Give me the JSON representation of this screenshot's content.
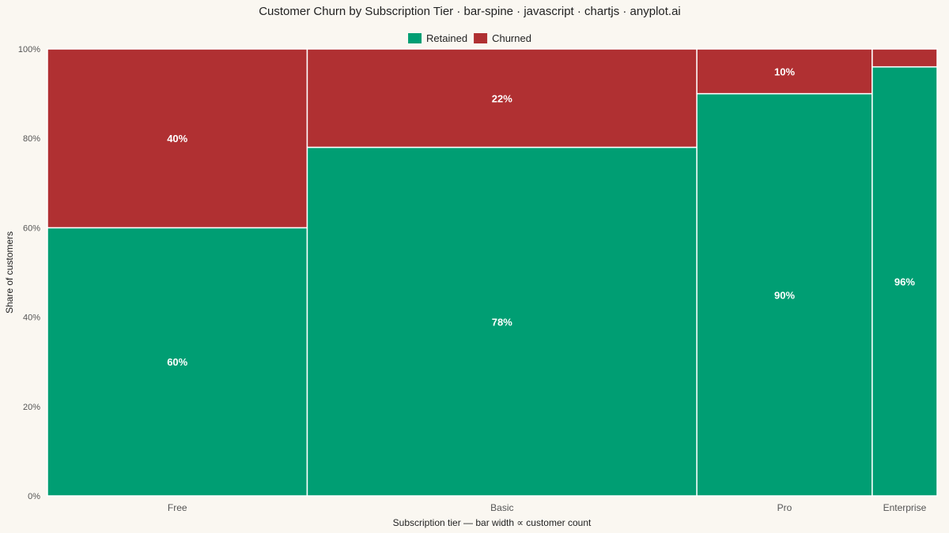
{
  "chart_data": {
    "type": "bar",
    "variant": "spine",
    "title": "Customer Churn by Subscription Tier · bar-spine · javascript · chartjs · anyplot.ai",
    "xlabel": "Subscription tier — bar width ∝ customer count",
    "ylabel": "Share of customers",
    "ylim": [
      0,
      100
    ],
    "y_ticks": [
      "0%",
      "20%",
      "40%",
      "60%",
      "80%",
      "100%"
    ],
    "legend_position": "top-center",
    "grid": false,
    "categories": [
      "Free",
      "Basic",
      "Pro",
      "Enterprise"
    ],
    "relative_width": [
      40,
      60,
      27,
      10
    ],
    "series": [
      {
        "name": "Retained",
        "color": "#009E73",
        "values": [
          60,
          78,
          90,
          96
        ],
        "labels": [
          "60%",
          "78%",
          "90%",
          "96%"
        ]
      },
      {
        "name": "Churned",
        "color": "#B03032",
        "values": [
          40,
          22,
          10,
          4
        ],
        "labels": [
          "40%",
          "22%",
          "10%",
          ""
        ]
      }
    ]
  }
}
